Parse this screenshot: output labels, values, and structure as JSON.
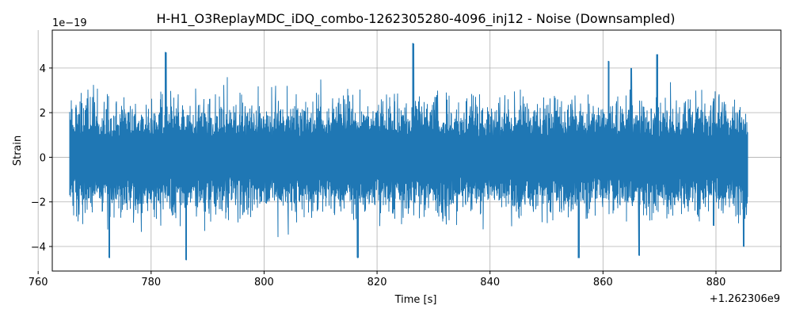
{
  "chart_data": {
    "type": "line",
    "title": "H-H1_O3ReplayMDC_iDQ_combo-1262305280-4096_inj12 - Noise (Downsampled)",
    "xlabel": "Time [s]",
    "ylabel": "Strain",
    "x_offset_label": "+1.262306e9",
    "y_scale_label": "1e−19",
    "xlim": [
      762.5,
      891.5
    ],
    "ylim": [
      -5.1,
      5.7
    ],
    "x_ticks": [
      760,
      780,
      800,
      820,
      840,
      860,
      880
    ],
    "x_tick_labels": [
      "760",
      "780",
      "800",
      "820",
      "840",
      "860",
      "880"
    ],
    "y_ticks": [
      -4,
      -2,
      0,
      2,
      4
    ],
    "y_tick_labels": [
      "−4",
      "−2",
      "0",
      "2",
      "4"
    ],
    "grid": true,
    "legend": "none",
    "series": [
      {
        "color": "#1f77b4",
        "x_range": [
          765.6,
          885.6
        ],
        "typical_amplitude": 1.6,
        "peaks": [
          {
            "x": 782.6,
            "y": 4.7
          },
          {
            "x": 826.4,
            "y": 5.1
          },
          {
            "x": 861.0,
            "y": 4.3
          },
          {
            "x": 869.6,
            "y": 4.6
          },
          {
            "x": 772.6,
            "y": -4.5
          },
          {
            "x": 786.2,
            "y": -4.6
          },
          {
            "x": 816.6,
            "y": -4.5
          },
          {
            "x": 855.7,
            "y": -4.5
          },
          {
            "x": 866.4,
            "y": -4.4
          },
          {
            "x": 884.9,
            "y": -4.0
          },
          {
            "x": 865.0,
            "y": 4.0
          }
        ]
      }
    ]
  }
}
